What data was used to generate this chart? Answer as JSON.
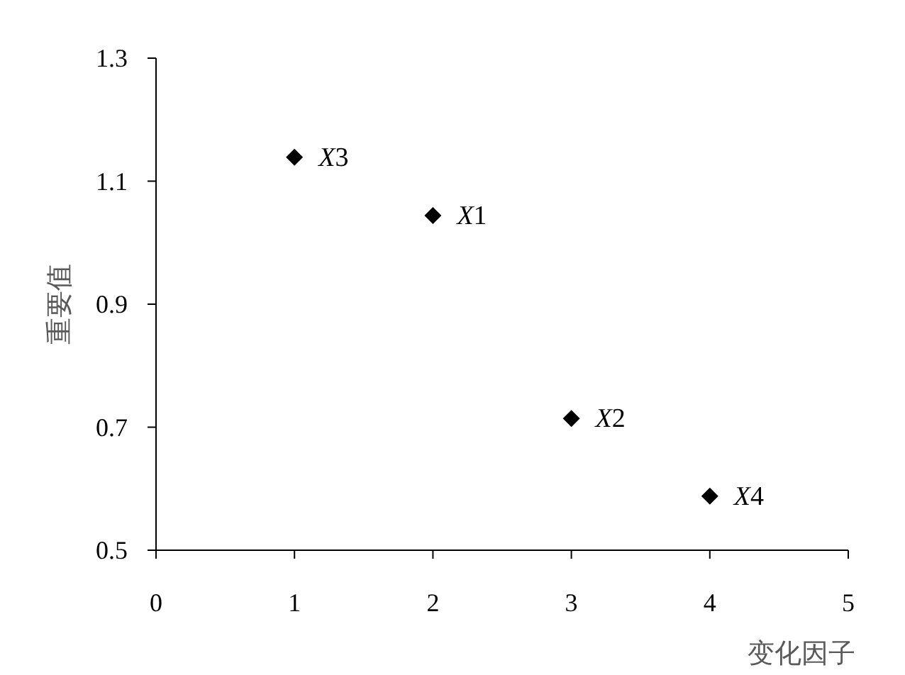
{
  "chart_data": {
    "type": "scatter",
    "xlabel": "变化因子",
    "ylabel": "重要值",
    "x": [
      1,
      2,
      3,
      4
    ],
    "series": [
      {
        "color": "#000000",
        "values": [
          1.139,
          1.044,
          0.714,
          0.588
        ]
      }
    ],
    "marker": "diamond",
    "xlim": [
      0,
      5
    ],
    "xticks": [
      0,
      1,
      2,
      3,
      4,
      5
    ],
    "ylim": [
      0.5,
      1.3
    ],
    "yticks": [
      {
        "value": 0.5,
        "label": "0.5"
      },
      {
        "value": 0.7,
        "label": "0.7"
      },
      {
        "value": 0.9,
        "label": "0.9"
      },
      {
        "value": 1.1,
        "label": "1.1"
      },
      {
        "value": 1.3,
        "label": "1.3"
      }
    ],
    "annotations": [
      {
        "text": "X3",
        "x": 1,
        "y": 1.139
      },
      {
        "text": "X1",
        "x": 2,
        "y": 1.044
      },
      {
        "text": "X2",
        "x": 3,
        "y": 0.714
      },
      {
        "text": "X4",
        "x": 4,
        "y": 0.588
      }
    ]
  }
}
